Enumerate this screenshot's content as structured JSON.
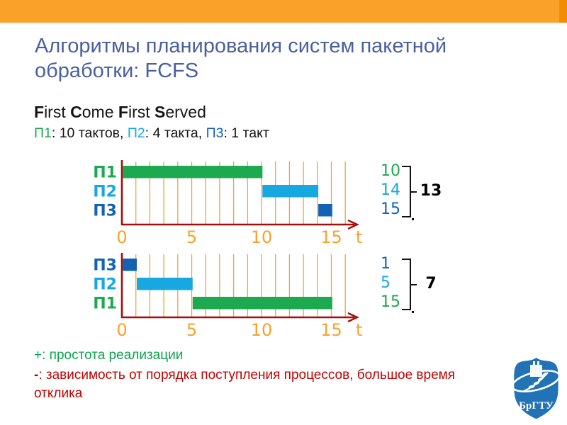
{
  "colors": {
    "topbar": "#F9A128",
    "topbar_accent": "#F18C07",
    "title": "#4A5F9E",
    "green": "#1CA94F",
    "cyan": "#17A8E2",
    "blue": "#1463B3",
    "axis_red": "#A50D0D",
    "grid_orange": "#F3A13C",
    "tick_orange": "#F9A128",
    "plus_green": "#0AA54D",
    "minus_red": "#C00000",
    "bracket_black": "#111111",
    "logo_blue": "#2173B5"
  },
  "title": {
    "text": "Алгоритмы планирования систем пакетной обработки: FCFS"
  },
  "heading": {
    "segments": [
      {
        "t": "F",
        "b": 1
      },
      {
        "t": "irst "
      },
      {
        "t": "C",
        "b": 1
      },
      {
        "t": "ome "
      },
      {
        "t": "F",
        "b": 1
      },
      {
        "t": "irst "
      },
      {
        "t": "S",
        "b": 1
      },
      {
        "t": "erved"
      }
    ]
  },
  "process_line": {
    "segments": [
      {
        "t": "П1",
        "c": "green"
      },
      {
        "t": ": 10 тактов, "
      },
      {
        "t": "П2",
        "c": "cyan"
      },
      {
        "t": ": 4 такта, "
      },
      {
        "t": "П3",
        "c": "blue"
      },
      {
        "t": ": 1 такт"
      }
    ]
  },
  "chart_data": [
    {
      "type": "gantt",
      "title": "FCFS schedule, arrival order П1 П2 П3",
      "x_range": [
        0,
        16
      ],
      "x_ticks": [
        0,
        5,
        10,
        15
      ],
      "x_axis_label": "t",
      "grid": "vertical line every 1 такт",
      "rows": [
        {
          "label": "П1",
          "color": "green",
          "start": 0,
          "end": 10
        },
        {
          "label": "П2",
          "color": "cyan",
          "start": 10,
          "end": 14
        },
        {
          "label": "П3",
          "color": "blue",
          "start": 14,
          "end": 15
        }
      ],
      "completion_times": [
        {
          "value": "10",
          "color": "green"
        },
        {
          "value": "14",
          "color": "cyan"
        },
        {
          "value": "15",
          "color": "blue"
        }
      ],
      "average": "13"
    },
    {
      "type": "gantt",
      "title": "FCFS schedule, arrival order П3 П2 П1",
      "x_range": [
        0,
        16
      ],
      "x_ticks": [
        0,
        5,
        10,
        15
      ],
      "x_axis_label": "t",
      "grid": "vertical line every 1 такт",
      "rows": [
        {
          "label": "П3",
          "color": "blue",
          "start": 0,
          "end": 1
        },
        {
          "label": "П2",
          "color": "cyan",
          "start": 1,
          "end": 5
        },
        {
          "label": "П1",
          "color": "green",
          "start": 5,
          "end": 15
        }
      ],
      "completion_times": [
        {
          "value": "1",
          "color": "blue"
        },
        {
          "value": "5",
          "color": "cyan"
        },
        {
          "value": "15",
          "color": "green"
        }
      ],
      "average": "7"
    }
  ],
  "pros": {
    "prefix": "+",
    "text": ": простота реализации"
  },
  "cons": {
    "prefix": "-",
    "text": ": зависимость от порядка поступления процессов, большое время отклика"
  },
  "logo": {
    "text": "БрГТУ"
  }
}
